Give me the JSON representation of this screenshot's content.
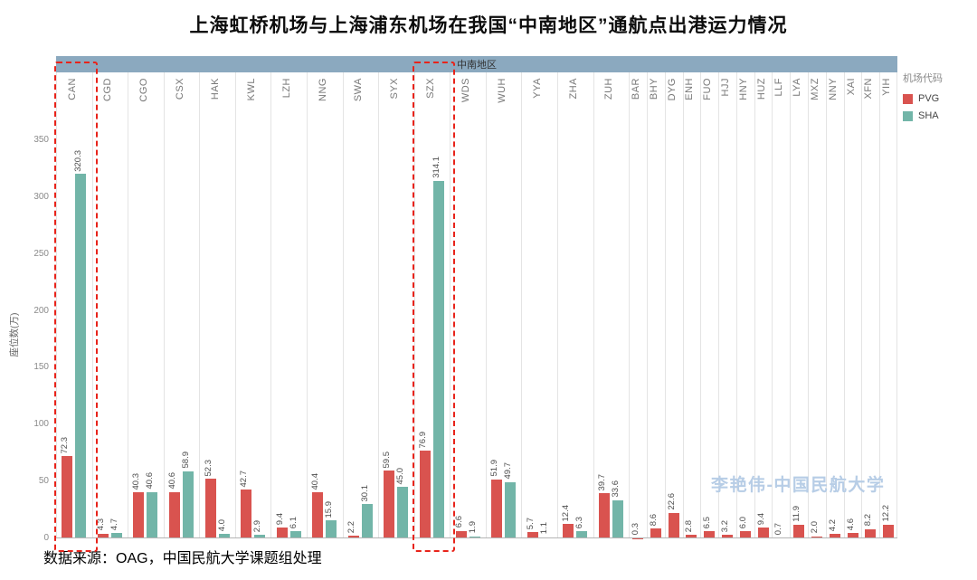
{
  "chart_data": {
    "type": "bar",
    "title": "上海虹桥机场与上海浦东机场在我国“中南地区”通航点出港运力情况",
    "region_header": "中南地区",
    "ylabel": "座位数(万)",
    "legend_title": "机场代码",
    "ylim": [
      0,
      350
    ],
    "yticks": [
      0,
      50,
      100,
      150,
      200,
      250,
      300,
      350
    ],
    "grid": "vertical-only",
    "legend_position": "top-right",
    "categories": [
      "CAN",
      "CGD",
      "CGO",
      "CSX",
      "HAK",
      "KWL",
      "LZH",
      "NNG",
      "SWA",
      "SYX",
      "SZX",
      "WDS",
      "WUH",
      "YYA",
      "ZHA",
      "ZUH",
      "BAR",
      "BHY",
      "DYG",
      "ENH",
      "FUO",
      "HJJ",
      "HNY",
      "HUZ",
      "LLF",
      "LYA",
      "MXZ",
      "NNY",
      "XAI",
      "XFN",
      "YIH"
    ],
    "series": [
      {
        "name": "PVG",
        "color": "#d9534f",
        "values": [
          72.3,
          4.3,
          40.3,
          40.6,
          52.3,
          42.7,
          9.4,
          40.4,
          2.2,
          59.5,
          76.9,
          6.6,
          51.9,
          5.7,
          12.4,
          39.7,
          0.3,
          8.6,
          22.6,
          2.8,
          6.5,
          3.2,
          6.0,
          9.4,
          0.7,
          11.9,
          2.0,
          4.2,
          4.6,
          8.2,
          12.2
        ]
      },
      {
        "name": "SHA",
        "color": "#72b5a8",
        "values": [
          320.3,
          4.7,
          40.6,
          58.9,
          4.0,
          2.9,
          6.1,
          15.9,
          30.1,
          45.0,
          314.1,
          1.9,
          49.7,
          1.1,
          6.3,
          33.6,
          null,
          null,
          null,
          null,
          null,
          null,
          null,
          null,
          null,
          null,
          null,
          null,
          null,
          null,
          null
        ]
      }
    ],
    "highlighted_categories": [
      "CAN",
      "SZX"
    ]
  },
  "footer": {
    "source_note": "数据来源：OAG，中国民航大学课题组处理"
  },
  "watermark": "李艳伟-中国民航大学"
}
